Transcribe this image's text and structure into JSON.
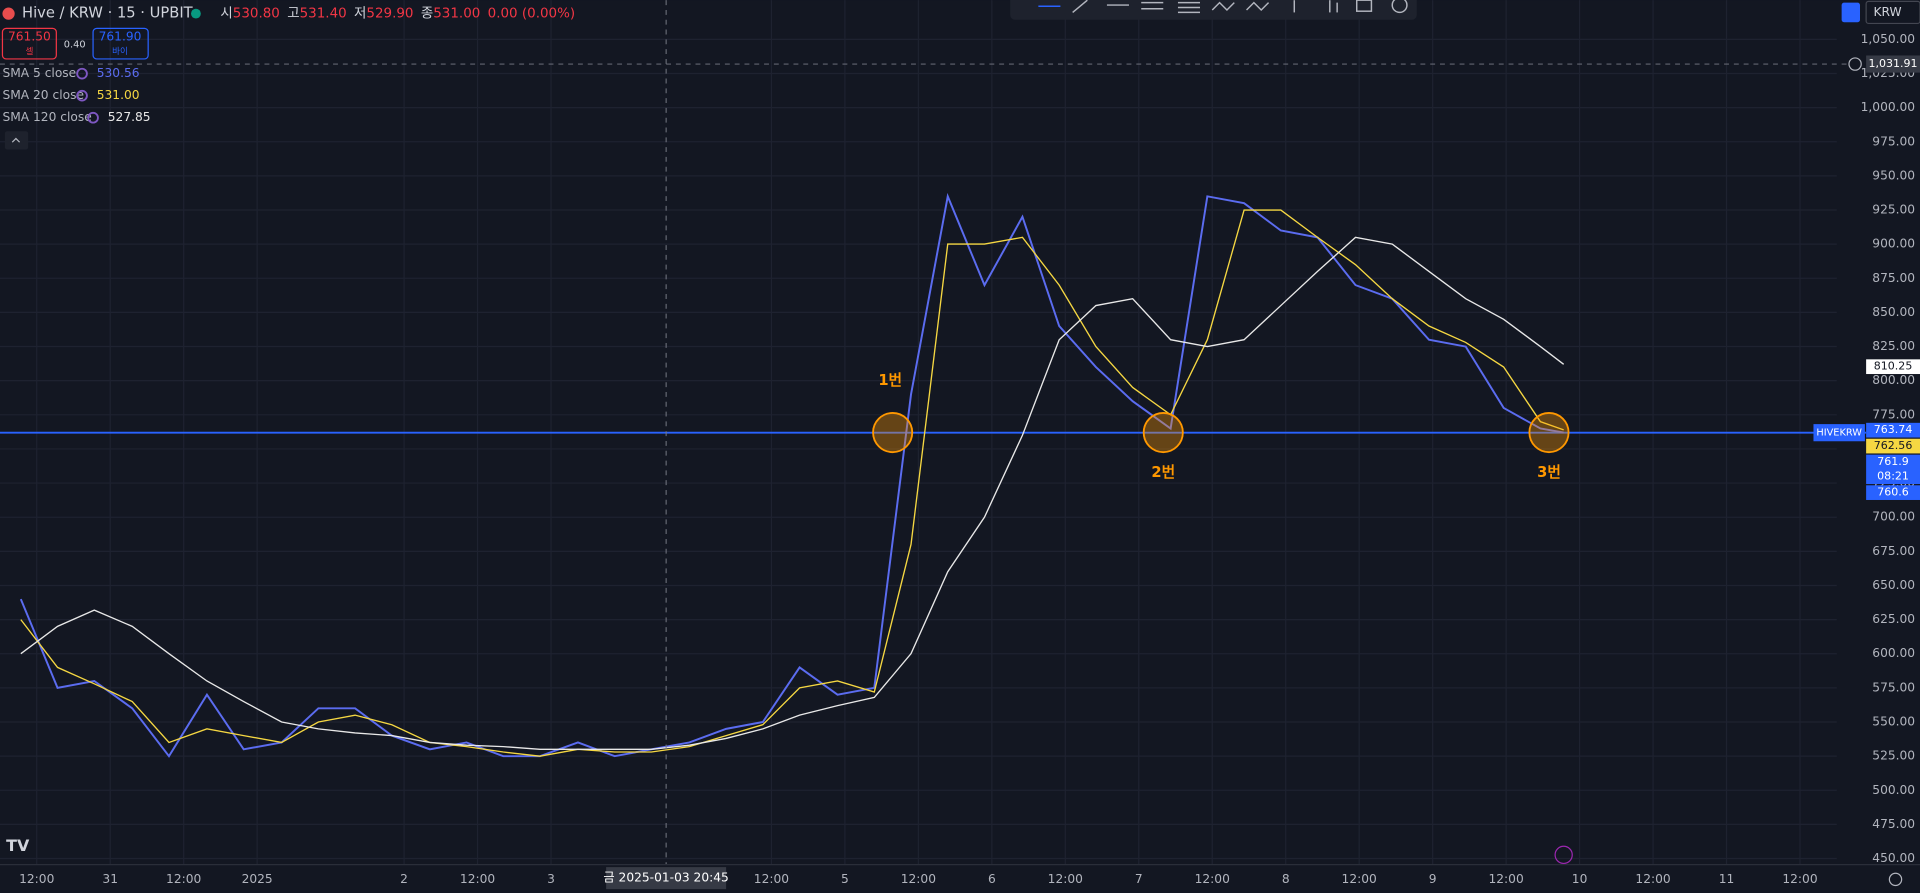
{
  "header": {
    "symbol": "Hive / KRW · 15 · UPBIT",
    "ohlc": [
      "시",
      "530.80",
      "고",
      "531.40",
      "저",
      "529.90",
      "종",
      "531.00",
      "0.00 (0.00%)"
    ],
    "sell": {
      "price": "761.50",
      "label": "셀"
    },
    "spread": "0.40",
    "buy": {
      "price": "761.90",
      "label": "바이"
    },
    "currency": "KRW"
  },
  "chart_data": {
    "type": "line",
    "x": [
      9.4,
      15.4,
      21.4,
      27.6,
      33.6,
      39.8,
      45.8,
      52,
      58,
      64,
      70,
      76.2,
      82.2,
      88.2,
      94.2,
      100.4,
      106.4,
      112.4,
      118.6,
      124.6,
      130.6,
      136.6,
      142.8,
      148.8,
      154.8,
      160.8,
      166.8,
      173,
      179,
      185,
      191,
      197.2,
      203.2,
      209.2,
      215.2,
      221.2,
      227.4,
      233.4,
      239.4,
      245.4,
      251.6,
      257.6,
      261.4
    ],
    "series": [
      {
        "name": "SMA 5 close",
        "legend_value": "530.56",
        "color": "#5b6cf0",
        "values": [
          640,
          575,
          580,
          560,
          525,
          570,
          530,
          535,
          560,
          560,
          540,
          530,
          535,
          525,
          525,
          535,
          525,
          530,
          535,
          545,
          550,
          590,
          570,
          575,
          790,
          935,
          870,
          920,
          840,
          810,
          785,
          765,
          935,
          930,
          910,
          905,
          870,
          860,
          830,
          825,
          780,
          765,
          762
        ]
      },
      {
        "name": "SMA 20 close",
        "legend_value": "531.00",
        "color": "#f5d742",
        "values": [
          625,
          590,
          578,
          565,
          535,
          545,
          540,
          535,
          550,
          555,
          548,
          535,
          532,
          528,
          525,
          530,
          528,
          528,
          532,
          540,
          548,
          575,
          580,
          572,
          680,
          900,
          900,
          905,
          870,
          825,
          795,
          775,
          830,
          925,
          925,
          905,
          885,
          860,
          840,
          828,
          810,
          770,
          764
        ]
      },
      {
        "name": "SMA 120 close",
        "legend_value": "527.85",
        "color": "#e8e8e8",
        "values": [
          600,
          620,
          632,
          620,
          600,
          580,
          565,
          550,
          545,
          542,
          540,
          535,
          533,
          532,
          530,
          530,
          530,
          530,
          533,
          538,
          545,
          555,
          562,
          568,
          600,
          660,
          700,
          760,
          830,
          855,
          860,
          830,
          825,
          830,
          855,
          880,
          905,
          900,
          880,
          860,
          845,
          825,
          812
        ]
      }
    ],
    "xlim": [
      6,
      306
    ],
    "xticks": [
      {
        "value": 12,
        "label": "12:00"
      },
      {
        "value": 24,
        "label": "31"
      },
      {
        "value": 36,
        "label": "12:00"
      },
      {
        "value": 48,
        "label": "2025"
      },
      {
        "value": 72,
        "label": "2"
      },
      {
        "value": 84,
        "label": "12:00"
      },
      {
        "value": 96,
        "label": "3"
      },
      {
        "value": 132,
        "label": "12:00"
      },
      {
        "value": 144,
        "label": "5"
      },
      {
        "value": 156,
        "label": "12:00"
      },
      {
        "value": 168,
        "label": "6"
      },
      {
        "value": 180,
        "label": "12:00"
      },
      {
        "value": 192,
        "label": "7"
      },
      {
        "value": 204,
        "label": "12:00"
      },
      {
        "value": 216,
        "label": "8"
      },
      {
        "value": 228,
        "label": "12:00"
      },
      {
        "value": 240,
        "label": "9"
      },
      {
        "value": 252,
        "label": "12:00"
      },
      {
        "value": 264,
        "label": "10"
      },
      {
        "value": 276,
        "label": "12:00"
      },
      {
        "value": 288,
        "label": "11"
      },
      {
        "value": 300,
        "label": "12:00"
      }
    ],
    "ylim": [
      445.5,
      1078.7
    ],
    "yticks": [
      {
        "value": 450,
        "label": "450.00"
      },
      {
        "value": 475,
        "label": "475.00"
      },
      {
        "value": 500,
        "label": "500.00"
      },
      {
        "value": 525,
        "label": "525.00"
      },
      {
        "value": 550,
        "label": "550.00"
      },
      {
        "value": 575,
        "label": "575.00"
      },
      {
        "value": 600,
        "label": "600.00"
      },
      {
        "value": 625,
        "label": "625.00"
      },
      {
        "value": 650,
        "label": "650.00"
      },
      {
        "value": 675,
        "label": "675.00"
      },
      {
        "value": 700,
        "label": "700.00"
      },
      {
        "value": 725,
        "label": "725.00"
      },
      {
        "value": 750,
        "label": "750.00"
      },
      {
        "value": 775,
        "label": "775.00"
      },
      {
        "value": 800,
        "label": "800.00"
      },
      {
        "value": 825,
        "label": "825.00"
      },
      {
        "value": 850,
        "label": "850.00"
      },
      {
        "value": 875,
        "label": "875.00"
      },
      {
        "value": 900,
        "label": "900.00"
      },
      {
        "value": 925,
        "label": "925.00"
      },
      {
        "value": 950,
        "label": "950.00"
      },
      {
        "value": 975,
        "label": "975.00"
      },
      {
        "value": 1000,
        "label": "1,000.00"
      },
      {
        "value": 1025,
        "label": "1,025.00"
      },
      {
        "value": 1050,
        "label": "1,050.00"
      }
    ],
    "grid": true,
    "current_price": {
      "value": 761.9,
      "symbol": "HIVEKRW",
      "countdown": "08:21",
      "color": "#2962ff"
    },
    "crosshair": {
      "value": 1031.91,
      "label": "1,031.91",
      "time": "금 2025-01-03  20:45"
    },
    "price_labels": [
      {
        "value": 810.25,
        "color": "#ffffff",
        "text_color": "#131722"
      },
      {
        "value": 763.74,
        "color": "#2962ff",
        "text_color": "#ffffff"
      },
      {
        "value": 762.56,
        "color": "#f5d742",
        "text_color": "#131722"
      },
      {
        "value": 760.6,
        "color": "#2962ff",
        "text_color": "#ffffff"
      }
    ],
    "annotations": [
      {
        "text": "1번",
        "x": 151.8,
        "y": 762
      },
      {
        "text": "2번",
        "x": 196,
        "y": 762
      },
      {
        "text": "3번",
        "x": 259,
        "y": 762
      }
    ]
  }
}
